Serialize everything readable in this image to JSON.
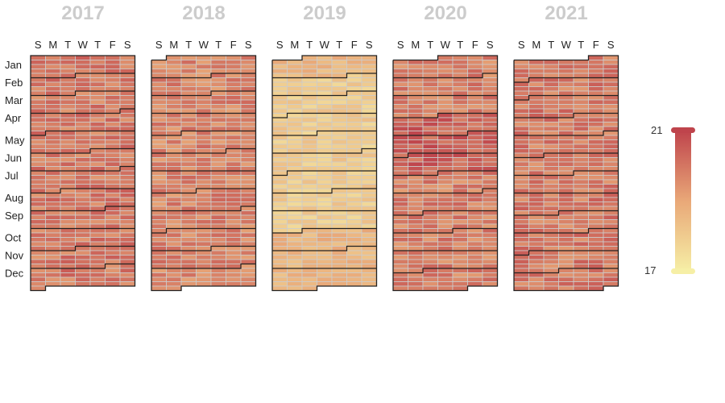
{
  "chart_data": {
    "type": "heatmap",
    "subtype": "calendar",
    "years": [
      "2017",
      "2018",
      "2019",
      "2020",
      "2021"
    ],
    "day_labels": [
      "S",
      "M",
      "T",
      "W",
      "T",
      "F",
      "S"
    ],
    "month_labels": [
      "Jan",
      "Feb",
      "Mar",
      "Apr",
      "May",
      "Jun",
      "Jul",
      "Aug",
      "Sep",
      "Oct",
      "Nov",
      "Dec"
    ],
    "visual_map": {
      "min": 17,
      "max": 21,
      "min_label": "17",
      "max_label": "21",
      "colors": [
        "#f6efa6",
        "#bf444c"
      ]
    },
    "approx_mean_by_year": {
      "2017": 19.9,
      "2018": 19.7,
      "2019": 18.4,
      "2020": 19.8,
      "2021": 19.9
    },
    "grid": {
      "cell_border": "#cccccc",
      "month_border": "#222222"
    }
  }
}
